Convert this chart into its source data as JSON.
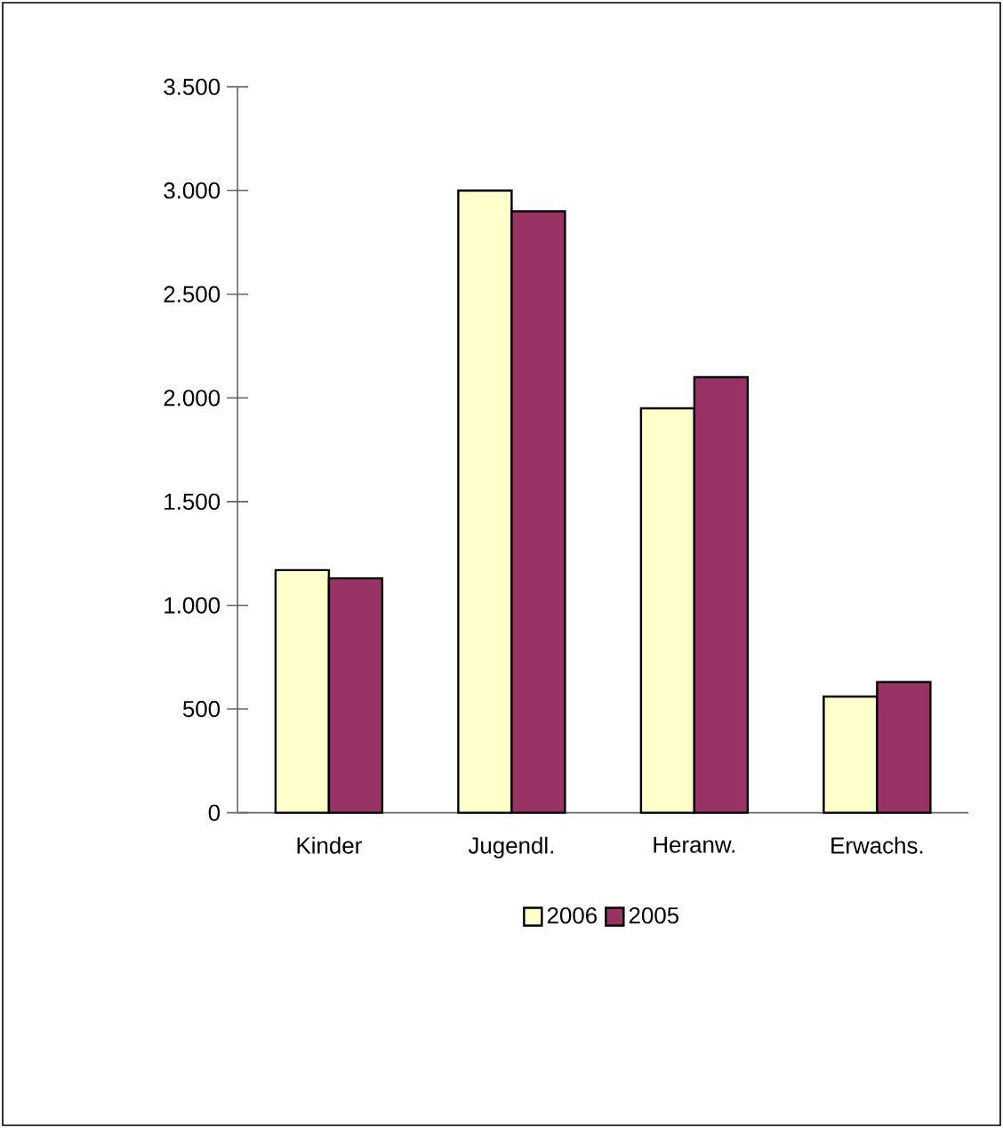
{
  "chart_data": {
    "type": "bar",
    "categories": [
      "Kinder",
      "Jugendl.",
      "Heranw.",
      "Erwachs."
    ],
    "series": [
      {
        "name": "2006",
        "color": "#ffffcc",
        "values": [
          1170,
          3000,
          1950,
          560
        ]
      },
      {
        "name": "2005",
        "color": "#993366",
        "values": [
          1130,
          2900,
          2100,
          630
        ]
      }
    ],
    "ylim": [
      0,
      3500
    ],
    "yticks": [
      {
        "value": 0,
        "label": "0"
      },
      {
        "value": 500,
        "label": "500"
      },
      {
        "value": 1000,
        "label": "1.000"
      },
      {
        "value": 1500,
        "label": "1.500"
      },
      {
        "value": 2000,
        "label": "2.000"
      },
      {
        "value": 2500,
        "label": "2.500"
      },
      {
        "value": 3000,
        "label": "3.000"
      },
      {
        "value": 3500,
        "label": "3.500"
      }
    ],
    "grid": false,
    "legend": "bottom"
  }
}
